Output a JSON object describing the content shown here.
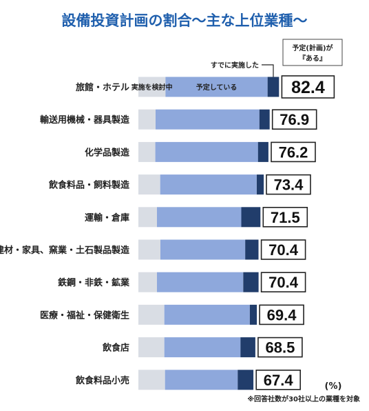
{
  "chart_data": {
    "type": "bar",
    "title": "設備投資計画の割合～主な上位業種～",
    "unit": "(%)",
    "note": "※回答社数が30社以上の業種を対象",
    "legend_annotations": {
      "considering": "実施を検討中",
      "planned": "予定している",
      "implemented": "すでに実施した",
      "total": "予定(計画)が『ある』"
    },
    "colors": {
      "considering": "#d9dde4",
      "planned": "#8ea8dc",
      "implemented": "#213d6b",
      "title": "#1f5fad",
      "box_border": "#222222"
    },
    "categories": [
      "旅館・ホテル",
      "輸送用機械・器具製造",
      "化学品製造",
      "飲食料品・飼料製造",
      "運輸・倉庫",
      "建材・家具、窯業・土石製品製造",
      "鉄鋼・非鉄・鉱業",
      "医療・福祉・保健衛生",
      "飲食店",
      "飲食料品小売"
    ],
    "series": [
      {
        "name": "実施を検討中",
        "values": [
          15.9,
          10.1,
          9.9,
          12.8,
          10.9,
          12.9,
          10.9,
          15.2,
          15.2,
          15.6
        ]
      },
      {
        "name": "予定している",
        "values": [
          59.8,
          60.8,
          60.2,
          56.5,
          49.4,
          49.7,
          50.5,
          50.1,
          44.6,
          42.6
        ]
      },
      {
        "name": "すでに実施した",
        "values": [
          6.7,
          6.0,
          6.1,
          4.1,
          11.2,
          7.8,
          9.0,
          4.1,
          8.7,
          9.2
        ]
      }
    ],
    "totals": [
      "82.4",
      "76.9",
      "76.2",
      "73.4",
      "71.5",
      "70.4",
      "70.4",
      "69.4",
      "68.5",
      "67.4"
    ]
  }
}
